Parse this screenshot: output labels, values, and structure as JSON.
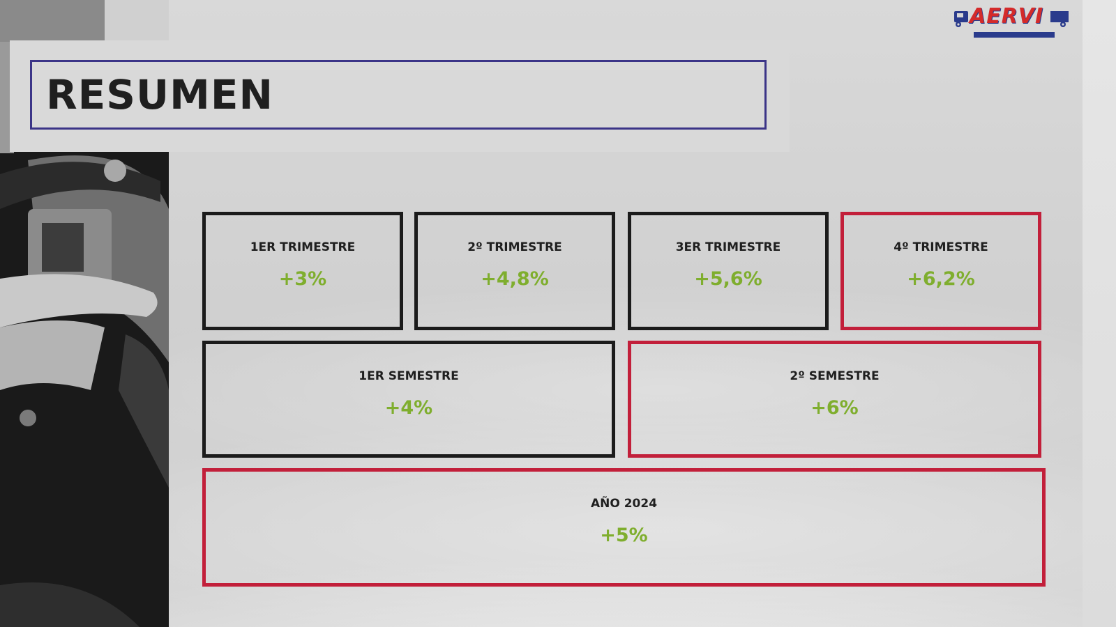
{
  "title": "RESUMEN",
  "logo": {
    "text": "AERVI",
    "colors": {
      "primary": "#d42a2a",
      "secondary": "#2a3b8c"
    }
  },
  "quarters": [
    {
      "label": "1ER TRIMESTRE",
      "value": "+3%",
      "highlight": false
    },
    {
      "label": "2º TRIMESTRE",
      "value": "+4,8%",
      "highlight": false
    },
    {
      "label": "3ER TRIMESTRE",
      "value": "+5,6%",
      "highlight": false
    },
    {
      "label": "4º TRIMESTRE",
      "value": "+6,2%",
      "highlight": true
    }
  ],
  "semesters": [
    {
      "label": "1ER SEMESTRE",
      "value": "+4%",
      "highlight": false
    },
    {
      "label": "2º SEMESTRE",
      "value": "+6%",
      "highlight": true
    }
  ],
  "year": {
    "label": "AÑO 2024",
    "value": "+5%",
    "highlight": true
  },
  "colors": {
    "title_border": "#3b3487",
    "box_border": "#1b1b1b",
    "highlight_border": "#c21f3a",
    "value_green": "#7fae2e"
  }
}
